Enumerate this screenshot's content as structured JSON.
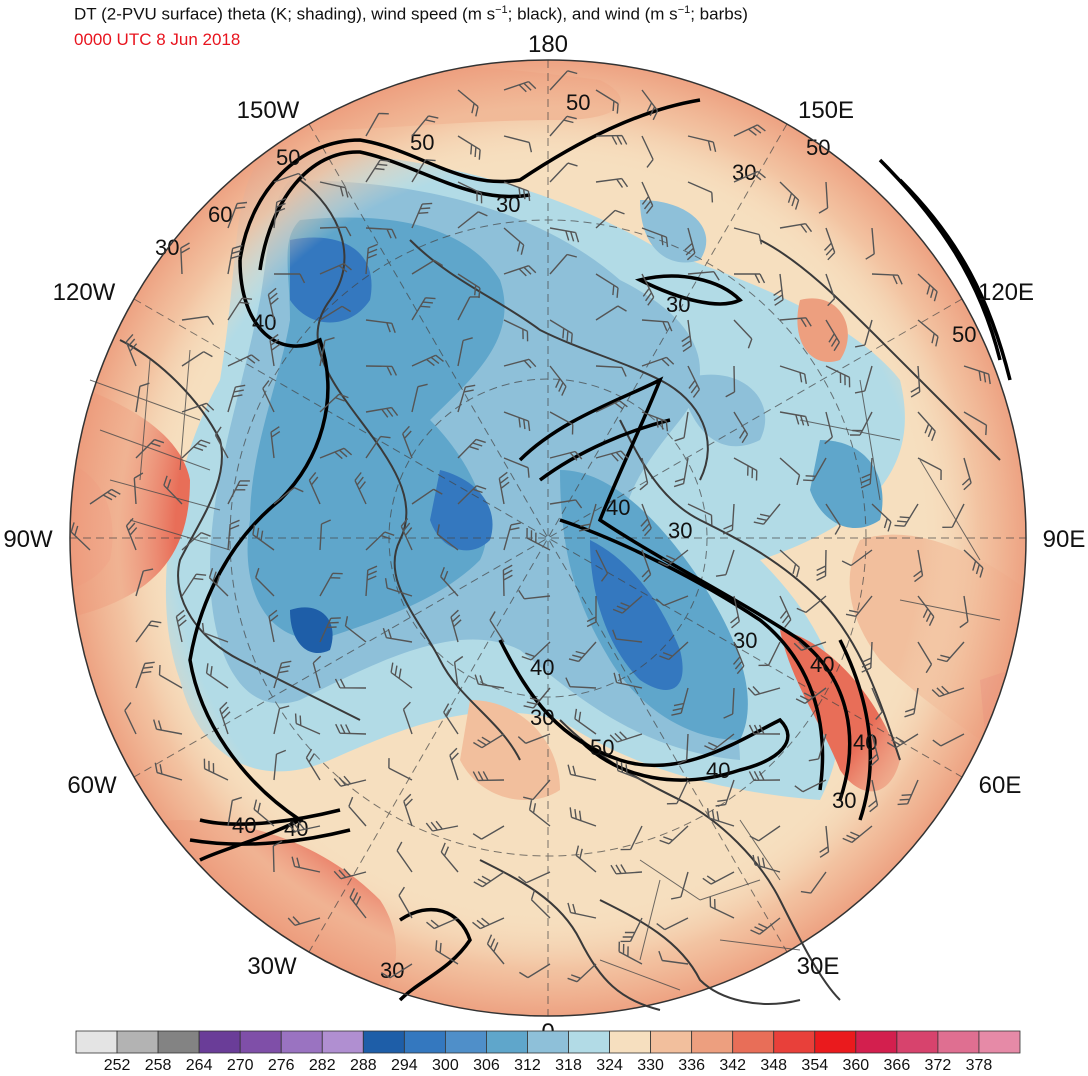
{
  "title": {
    "part1": "DT (2-PVU surface) theta (K; shading), wind speed (m s",
    "sup1": "−1",
    "part2": "; black), and wind (m s",
    "sup2": "−1",
    "part3": "; barbs)"
  },
  "valid_time": "0000 UTC 8 Jun 2018",
  "map": {
    "projection": "north polar stereographic",
    "longitude_labels": [
      {
        "text": "180",
        "lon": 180
      },
      {
        "text": "150E",
        "lon": 150
      },
      {
        "text": "120E",
        "lon": 120
      },
      {
        "text": "90E",
        "lon": 90
      },
      {
        "text": "60E",
        "lon": 60
      },
      {
        "text": "30E",
        "lon": 30
      },
      {
        "text": "0",
        "lon": 0
      },
      {
        "text": "30W",
        "lon": -30
      },
      {
        "text": "60W",
        "lon": -60
      },
      {
        "text": "90W",
        "lon": -90
      },
      {
        "text": "120W",
        "lon": -120
      },
      {
        "text": "150W",
        "lon": -150
      }
    ],
    "contour_labels": [
      "50",
      "50",
      "50",
      "50",
      "60",
      "30",
      "30",
      "40",
      "30",
      "40",
      "30",
      "30",
      "40",
      "40",
      "30",
      "50",
      "40",
      "40",
      "30",
      "40",
      "40",
      "30",
      "30",
      "50"
    ]
  },
  "colorbar": {
    "colors": [
      "#e4e4e4",
      "#b3b3b3",
      "#838383",
      "#6a3d98",
      "#7f4fa8",
      "#9a73c1",
      "#b08fd1",
      "#1e5ea8",
      "#3478bf",
      "#4f8fc9",
      "#5fa6cb",
      "#8ec0d9",
      "#b2dbe6",
      "#f6dfbf",
      "#f2bf9d",
      "#ed9f7f",
      "#e86e58",
      "#e8403a",
      "#ea1a1d",
      "#d31f4e",
      "#d7436d",
      "#df6f91",
      "#e68aa7"
    ],
    "labels": [
      "252",
      "258",
      "264",
      "270",
      "276",
      "282",
      "288",
      "294",
      "300",
      "306",
      "312",
      "318",
      "324",
      "330",
      "336",
      "342",
      "348",
      "354",
      "360",
      "366",
      "372",
      "378"
    ]
  },
  "colors": {
    "title": "#111111",
    "valid_time": "#e8141e",
    "contour": "#000000",
    "coastline": "#3a3a3a"
  }
}
